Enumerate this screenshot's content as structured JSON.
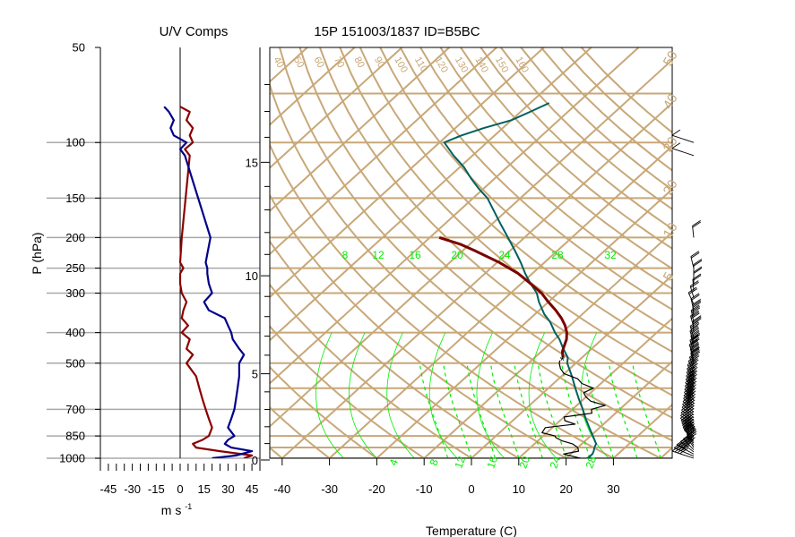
{
  "chart_data": [
    {
      "type": "line",
      "title": "U/V Comps",
      "ylabel": "P (hPa)",
      "xlabel": "m s",
      "xlabel_superscript": "-1",
      "y_ticks": [
        50,
        100,
        150,
        200,
        250,
        300,
        400,
        500,
        700,
        850,
        1000
      ],
      "x_ticks": [
        -45,
        -30,
        -15,
        0,
        15,
        30,
        45
      ],
      "x_tick_labels": [
        "-45",
        "-30",
        "-15",
        "0",
        "15",
        "30",
        "45"
      ],
      "xlim": [
        -50,
        50
      ],
      "ylim": [
        1050,
        50
      ],
      "y_scale": "log",
      "grid": true,
      "colors": {
        "u": "#8b0000",
        "v": "#00008b",
        "grid": "#a9a9a9"
      },
      "series": [
        {
          "key": "u",
          "p": [
            1000,
            980,
            950,
            925,
            900,
            875,
            850,
            800,
            750,
            700,
            650,
            600,
            550,
            500,
            470,
            450,
            420,
            400,
            380,
            360,
            340,
            320,
            300,
            280,
            260,
            250,
            240,
            200,
            110,
            105,
            100,
            95,
            90,
            85,
            80,
            77
          ],
          "values": [
            40,
            45,
            25,
            10,
            8,
            14,
            18,
            20,
            18,
            16,
            14,
            12,
            10,
            4,
            8,
            4,
            6,
            1,
            5,
            1,
            2,
            4,
            1,
            0,
            0,
            2,
            0,
            1,
            6,
            3,
            8,
            6,
            8,
            4,
            6,
            0
          ]
        },
        {
          "key": "v",
          "p": [
            1000,
            980,
            950,
            925,
            900,
            875,
            850,
            800,
            750,
            700,
            650,
            600,
            550,
            500,
            470,
            450,
            420,
            400,
            380,
            360,
            340,
            320,
            300,
            280,
            260,
            250,
            240,
            200,
            110,
            105,
            100,
            95,
            90,
            85,
            80,
            77
          ],
          "values": [
            20,
            35,
            45,
            32,
            28,
            30,
            34,
            30,
            32,
            34,
            35,
            36,
            37,
            37,
            40,
            37,
            33,
            32,
            30,
            28,
            18,
            15,
            20,
            18,
            17,
            17,
            16,
            19,
            3,
            0,
            4,
            -4,
            -6,
            -4,
            -7,
            -10
          ]
        }
      ]
    },
    {
      "type": "line",
      "title": "15P 151003/1837 ID=B5BC",
      "xlabel": "Temperature (C)",
      "x_ticks": [
        -40,
        -30,
        -20,
        -10,
        0,
        10,
        20,
        30
      ],
      "x_tick_labels": [
        "-40",
        "-30",
        "-20",
        "-10",
        "0",
        "10",
        "20",
        "30"
      ],
      "xlim": [
        -44,
        42
      ],
      "ylim": [
        1050,
        50
      ],
      "height_ticks_km": [
        "0",
        "5",
        "10",
        "15"
      ],
      "height_tick_values": [
        0,
        5,
        10,
        15
      ],
      "mixing_ratio_labels": [
        "8",
        "12",
        "16",
        "20",
        "24",
        "28",
        "32"
      ],
      "mixing_ratio_x_temp": [
        -27,
        -20,
        -12,
        -3,
        7,
        18,
        29
      ],
      "saturated_adiabat_labels": [
        "4",
        "8",
        "12",
        "16",
        "20",
        "24",
        "28"
      ],
      "dry_adiabat_labels": [
        "40",
        "50",
        "60",
        "70",
        "80",
        "90",
        "100",
        "110",
        "120",
        "130",
        "140",
        "150",
        "160"
      ],
      "right_theta_labels": [
        "50",
        "40",
        "30",
        "20",
        "10",
        "5"
      ],
      "grid": true,
      "colors": {
        "isotherm": "#c8a878",
        "mixing": "#00ee00",
        "temperature": "#006060",
        "dewpoint": "#000000",
        "parcel": "#7b0000",
        "barbs": "#000000"
      },
      "series": [
        {
          "key": "temperature",
          "p": [
            1000,
            970,
            950,
            925,
            900,
            850,
            800,
            750,
            700,
            650,
            600,
            550,
            500,
            480,
            450,
            420,
            400,
            370,
            350,
            320,
            300,
            280,
            260,
            240,
            220,
            200,
            180,
            160,
            150,
            140,
            130,
            120,
            110,
            100,
            95,
            90,
            85,
            80,
            75
          ],
          "values": [
            24.5,
            24.6,
            24.2,
            23.5,
            23,
            20.5,
            17.8,
            15,
            12.2,
            9,
            5.7,
            2.2,
            -1.8,
            -3,
            -6,
            -9,
            -11.5,
            -15,
            -18,
            -22,
            -24.5,
            -28,
            -31.5,
            -35,
            -39,
            -43.5,
            -48.5,
            -54,
            -57,
            -61,
            -65,
            -69,
            -74,
            -79,
            -77,
            -74,
            -70,
            -68,
            -66
          ]
        },
        {
          "key": "dewpoint",
          "p": [
            1000,
            970,
            950,
            925,
            900,
            880,
            860,
            850,
            830,
            800,
            780,
            760,
            740,
            720,
            700,
            680,
            660,
            640,
            620,
            600,
            580,
            560,
            540,
            520,
            500,
            490
          ],
          "values": [
            23,
            18.5,
            21,
            20,
            18,
            15,
            13,
            12.5,
            9,
            8.5,
            14,
            11,
            10,
            15,
            14,
            16,
            12,
            10,
            8.5,
            9.5,
            6,
            4,
            0,
            -2,
            -3.5,
            -4
          ]
        },
        {
          "key": "parcel",
          "p": [
            480,
            460,
            440,
            420,
            400,
            380,
            360,
            340,
            320,
            300,
            280,
            260,
            240,
            220,
            210,
            200
          ],
          "values": [
            -4,
            -5.5,
            -6.5,
            -7.5,
            -9,
            -11,
            -13.5,
            -16.5,
            -20,
            -23.5,
            -28,
            -33,
            -39.5,
            -47.5,
            -52,
            -58
          ]
        }
      ]
    }
  ]
}
